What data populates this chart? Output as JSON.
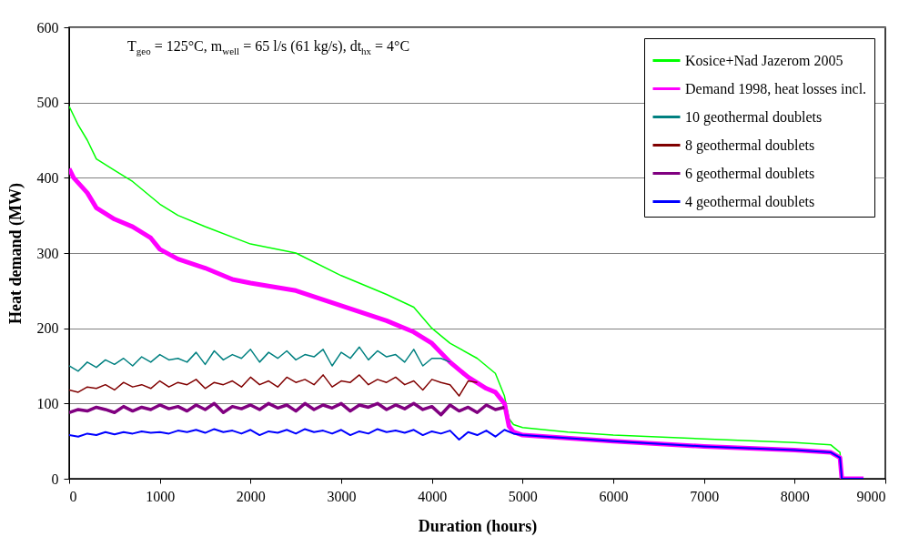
{
  "chart_data": {
    "type": "line",
    "xlabel": "Duration (hours)",
    "ylabel": "Heat demand (MW)",
    "xlim": [
      0,
      9000
    ],
    "xticks": [
      0,
      1000,
      2000,
      3000,
      4000,
      5000,
      6000,
      7000,
      8000,
      9000
    ],
    "ylim": [
      0,
      600
    ],
    "yticks": [
      0,
      100,
      200,
      300,
      400,
      500,
      600
    ],
    "grid": "y",
    "legend": "top right",
    "annotations": [
      "T$_{geo}$ = 125°C, m$_{well}$ = 65 l/s (61 kg/s), dt$_{hx}$ = 4°C"
    ],
    "series": [
      {
        "name": "Kosice+Nad Jazerom 2005",
        "color": "#00ff00",
        "x": [
          0,
          100,
          200,
          300,
          500,
          700,
          1000,
          1200,
          1500,
          2000,
          2500,
          3000,
          3500,
          3800,
          4000,
          4200,
          4500,
          4700,
          4800,
          4850,
          4900,
          5000,
          5500,
          6000,
          7000,
          8000,
          8400,
          8500,
          8520,
          8760
        ],
        "values": [
          495,
          470,
          450,
          425,
          410,
          395,
          365,
          350,
          335,
          312,
          300,
          270,
          245,
          228,
          200,
          180,
          160,
          140,
          110,
          80,
          72,
          68,
          62,
          58,
          53,
          48,
          45,
          35,
          0,
          0
        ]
      },
      {
        "name": "Demand 1998, heat losses incl.",
        "color": "#ff00ff",
        "x": [
          0,
          50,
          200,
          300,
          500,
          700,
          900,
          1000,
          1200,
          1500,
          1800,
          2000,
          2500,
          3000,
          3500,
          3800,
          4000,
          4200,
          4400,
          4600,
          4700,
          4800,
          4850,
          4900,
          5000,
          6000,
          7000,
          8000,
          8400,
          8500,
          8520,
          8760
        ],
        "values": [
          412,
          400,
          380,
          360,
          345,
          335,
          320,
          305,
          292,
          280,
          265,
          260,
          250,
          230,
          210,
          195,
          180,
          155,
          135,
          120,
          115,
          100,
          70,
          62,
          58,
          50,
          43,
          38,
          35,
          28,
          0,
          0
        ]
      },
      {
        "name": "10 geothermal doublets",
        "color": "#008080",
        "x": [
          0,
          100,
          200,
          300,
          400,
          500,
          600,
          700,
          800,
          900,
          1000,
          1100,
          1200,
          1300,
          1400,
          1500,
          1600,
          1700,
          1800,
          1900,
          2000,
          2100,
          2200,
          2300,
          2400,
          2500,
          2600,
          2700,
          2800,
          2900,
          3000,
          3100,
          3200,
          3300,
          3400,
          3500,
          3600,
          3700,
          3800,
          3900,
          4000,
          4100,
          4200
        ],
        "values": [
          150,
          143,
          155,
          148,
          158,
          152,
          160,
          150,
          162,
          155,
          165,
          158,
          160,
          155,
          168,
          152,
          170,
          158,
          165,
          160,
          172,
          155,
          168,
          160,
          170,
          158,
          165,
          162,
          172,
          150,
          168,
          160,
          175,
          158,
          170,
          162,
          165,
          155,
          172,
          150,
          160,
          160,
          155
        ]
      },
      {
        "name": "8 geothermal doublets",
        "color": "#800000",
        "x": [
          0,
          100,
          200,
          300,
          400,
          500,
          600,
          700,
          800,
          900,
          1000,
          1100,
          1200,
          1300,
          1400,
          1500,
          1600,
          1700,
          1800,
          1900,
          2000,
          2100,
          2200,
          2300,
          2400,
          2500,
          2600,
          2700,
          2800,
          2900,
          3000,
          3100,
          3200,
          3300,
          3400,
          3500,
          3600,
          3700,
          3800,
          3900,
          4000,
          4100,
          4200,
          4300,
          4400,
          4500
        ],
        "values": [
          118,
          115,
          122,
          120,
          125,
          118,
          128,
          122,
          125,
          120,
          130,
          122,
          128,
          125,
          132,
          120,
          128,
          125,
          130,
          122,
          135,
          125,
          130,
          122,
          135,
          128,
          132,
          125,
          138,
          122,
          130,
          128,
          138,
          125,
          132,
          128,
          135,
          125,
          130,
          118,
          132,
          128,
          125,
          110,
          130,
          128
        ]
      },
      {
        "name": "6 geothermal doublets",
        "color": "#800080",
        "x": [
          0,
          100,
          200,
          300,
          400,
          500,
          600,
          700,
          800,
          900,
          1000,
          1100,
          1200,
          1300,
          1400,
          1500,
          1600,
          1700,
          1800,
          1900,
          2000,
          2100,
          2200,
          2300,
          2400,
          2500,
          2600,
          2700,
          2800,
          2900,
          3000,
          3100,
          3200,
          3300,
          3400,
          3500,
          3600,
          3700,
          3800,
          3900,
          4000,
          4100,
          4200,
          4300,
          4400,
          4500,
          4600,
          4700,
          4800
        ],
        "values": [
          88,
          92,
          90,
          95,
          92,
          88,
          96,
          90,
          95,
          92,
          98,
          93,
          96,
          90,
          98,
          92,
          100,
          88,
          96,
          93,
          98,
          92,
          100,
          94,
          98,
          90,
          100,
          92,
          98,
          94,
          100,
          90,
          98,
          95,
          100,
          92,
          98,
          93,
          100,
          92,
          96,
          85,
          98,
          90,
          95,
          88,
          98,
          92,
          95
        ]
      },
      {
        "name": "4 geothermal doublets",
        "color": "#0000ff",
        "x": [
          0,
          100,
          200,
          300,
          400,
          500,
          600,
          700,
          800,
          900,
          1000,
          1100,
          1200,
          1300,
          1400,
          1500,
          1600,
          1700,
          1800,
          1900,
          2000,
          2100,
          2200,
          2300,
          2400,
          2500,
          2600,
          2700,
          2800,
          2900,
          3000,
          3100,
          3200,
          3300,
          3400,
          3500,
          3600,
          3700,
          3800,
          3900,
          4000,
          4100,
          4200,
          4300,
          4400,
          4500,
          4600,
          4700,
          4800,
          4900,
          5000,
          6000,
          7000,
          8000,
          8400,
          8500,
          8520,
          8760
        ],
        "values": [
          58,
          56,
          60,
          58,
          62,
          59,
          62,
          60,
          63,
          61,
          62,
          60,
          64,
          62,
          65,
          61,
          66,
          62,
          64,
          60,
          65,
          58,
          63,
          61,
          65,
          60,
          66,
          62,
          64,
          60,
          65,
          58,
          63,
          60,
          66,
          62,
          64,
          61,
          65,
          58,
          63,
          60,
          64,
          52,
          62,
          58,
          64,
          56,
          65,
          60,
          58,
          50,
          43,
          38,
          35,
          28,
          0,
          0
        ]
      }
    ]
  }
}
